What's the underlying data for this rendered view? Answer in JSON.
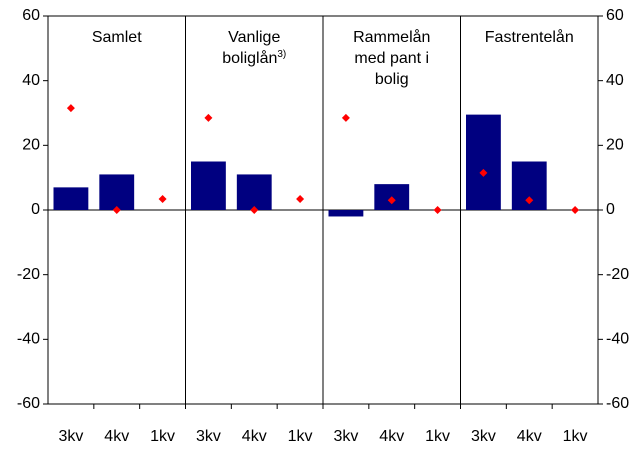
{
  "chart_data": {
    "type": "bar",
    "categories": [
      "3kv",
      "4kv",
      "1kv",
      "3kv",
      "4kv",
      "1kv",
      "3kv",
      "4kv",
      "1kv",
      "3kv",
      "4kv",
      "1kv"
    ],
    "panels": [
      {
        "title_lines": [
          "Samlet"
        ]
      },
      {
        "title_lines": [
          "Vanlige",
          "boliglån"
        ],
        "title_note": "3)"
      },
      {
        "title_lines": [
          "Rammelån",
          "med pant i",
          "bolig"
        ]
      },
      {
        "title_lines": [
          "Fastrentelån"
        ]
      }
    ],
    "series": [
      {
        "type": "bar",
        "color": "#000080",
        "values": [
          7,
          11,
          null,
          15,
          11,
          null,
          -2,
          8,
          null,
          29.5,
          15,
          null
        ]
      },
      {
        "type": "scatter",
        "marker": "diamond",
        "color": "#ff0000",
        "values": [
          31.5,
          0,
          3.4,
          28.5,
          0,
          3.4,
          28.5,
          3,
          0,
          11.5,
          3,
          0
        ]
      }
    ],
    "ylim": [
      -60,
      60
    ],
    "yticks": [
      -60,
      -40,
      -20,
      0,
      20,
      40,
      60
    ],
    "y2lim": [
      -60,
      60
    ],
    "y2ticks": [
      -60,
      -40,
      -20,
      0,
      20,
      40,
      60
    ]
  }
}
